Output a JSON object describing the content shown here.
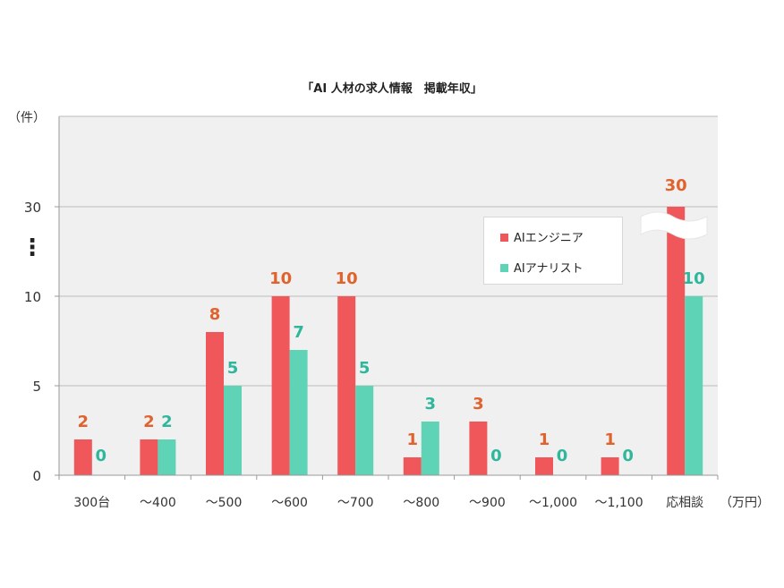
{
  "chart_data": {
    "type": "bar",
    "title": "「AI 人材の求人情報　掲載年収」",
    "ylabel": "（件）",
    "xlabel": "（万円）",
    "y_ticks": [
      "0",
      "5",
      "10",
      "30"
    ],
    "axis_break_symbol": "⋮",
    "categories": [
      "300台",
      "～400",
      "～500",
      "～600",
      "～700",
      "～800",
      "～900",
      "～1,000",
      "～1,100",
      "応相談"
    ],
    "series": [
      {
        "name": "AIエンジニア",
        "color": "#f0575a",
        "label_color": "#e0622d",
        "values": [
          2,
          2,
          8,
          10,
          10,
          1,
          3,
          1,
          1,
          30
        ]
      },
      {
        "name": "AIアナリスト",
        "color": "#5fd3b5",
        "label_color": "#2fb79c",
        "values": [
          0,
          2,
          5,
          7,
          5,
          3,
          0,
          0,
          0,
          10
        ]
      }
    ],
    "grid": true,
    "legend_position": "right"
  }
}
